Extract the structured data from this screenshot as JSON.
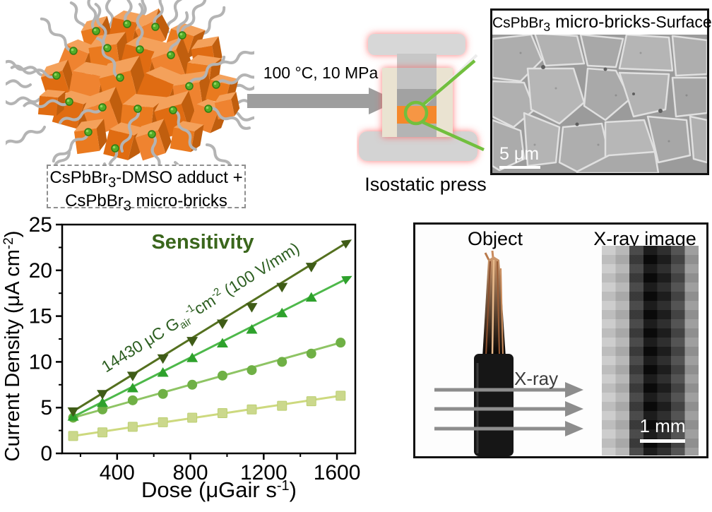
{
  "colors": {
    "accent_orange": "#e8761e",
    "brick_dot_green": "#54ad28",
    "press_glow_red": "#ff6a6a",
    "magnifier_green": "#72bf3e",
    "sensitivity_green": "#3a661c",
    "annotation_green": "#2c5e20",
    "arrow_gray": "#9e9e9e"
  },
  "scheme": {
    "adduct_line1": {
      "p1": "CsPbBr",
      "sub": "3",
      "p2": "-DMSO adduct +"
    },
    "adduct_line2": {
      "p1": "CsPbBr",
      "sub": "3",
      "p2": " micro-bricks"
    },
    "conditions": "100 °C, 10 MPa",
    "press_label": "Isostatic press"
  },
  "sem_panel": {
    "title": {
      "p1": "CsPbBr",
      "sub": "3",
      "p2": " micro-bricks",
      "p3": "-Surface"
    },
    "scale_bar": "5 μm"
  },
  "chart_data": {
    "type": "scatter",
    "title": "Sensitivity",
    "annotation": {
      "p1": "14430 μC G",
      "sub": "air",
      "sup1": "-1",
      "p2": "cm",
      "sup2": "-2",
      "p3": " (100 V/mm)"
    },
    "xlabel": {
      "p1": "Dose  (μGair s",
      "sup": "-1",
      "p2": ")"
    },
    "ylabel": {
      "p1": "Current Density  (μA cm",
      "sup": "-2",
      "p2": ")"
    },
    "xlim": [
      100,
      1700
    ],
    "ylim": [
      0,
      25
    ],
    "x_ticks": [
      400,
      800,
      1200,
      1600
    ],
    "x_minor_ticks": [
      200,
      600,
      1000,
      1400
    ],
    "y_ticks": [
      0,
      5,
      10,
      15,
      20,
      25
    ],
    "y_minor_ticks": [
      2.5,
      7.5,
      12.5,
      17.5,
      22.5
    ],
    "grid": false,
    "legend": "none",
    "series": [
      {
        "name": "triangle-down-series",
        "marker": "triangle-down",
        "color": "#3f5c17",
        "line_color": "#54701f",
        "x": [
          160,
          320,
          485,
          650,
          810,
          975,
          1135,
          1300,
          1460
        ],
        "values": [
          4.6,
          6.5,
          8.5,
          10.4,
          12.3,
          14.2,
          16.0,
          18.2,
          20.4
        ],
        "arrow_end": {
          "x": 1635,
          "y": 22.8
        }
      },
      {
        "name": "triangle-up-series",
        "marker": "triangle-up",
        "color": "#2ea12c",
        "line_color": "#4db84a",
        "x": [
          160,
          320,
          485,
          650,
          810,
          975,
          1135,
          1300,
          1460
        ],
        "values": [
          4.0,
          5.5,
          7.1,
          8.8,
          10.4,
          12.0,
          13.5,
          15.3,
          17.0
        ],
        "arrow_end": {
          "x": 1635,
          "y": 18.9
        }
      },
      {
        "name": "circle-series",
        "marker": "circle",
        "color": "#6fb045",
        "line_color": "#8ec464",
        "x": [
          160,
          320,
          485,
          650,
          810,
          975,
          1135,
          1300,
          1460,
          1620
        ],
        "values": [
          3.9,
          4.8,
          5.8,
          6.5,
          7.5,
          8.5,
          9.1,
          10.0,
          10.9,
          12.1
        ]
      },
      {
        "name": "square-series",
        "marker": "square",
        "color": "#cbd88c",
        "line_color": "#cdd97e",
        "x": [
          160,
          320,
          485,
          650,
          810,
          975,
          1135,
          1300,
          1460,
          1620
        ],
        "values": [
          1.9,
          2.3,
          2.9,
          3.4,
          3.9,
          4.4,
          4.8,
          5.2,
          5.7,
          6.3
        ]
      }
    ]
  },
  "xray_panel": {
    "object_label": "Object",
    "xray_image_label": "X-ray image",
    "beam_label": "X-ray",
    "scale_bar": "1 mm"
  }
}
